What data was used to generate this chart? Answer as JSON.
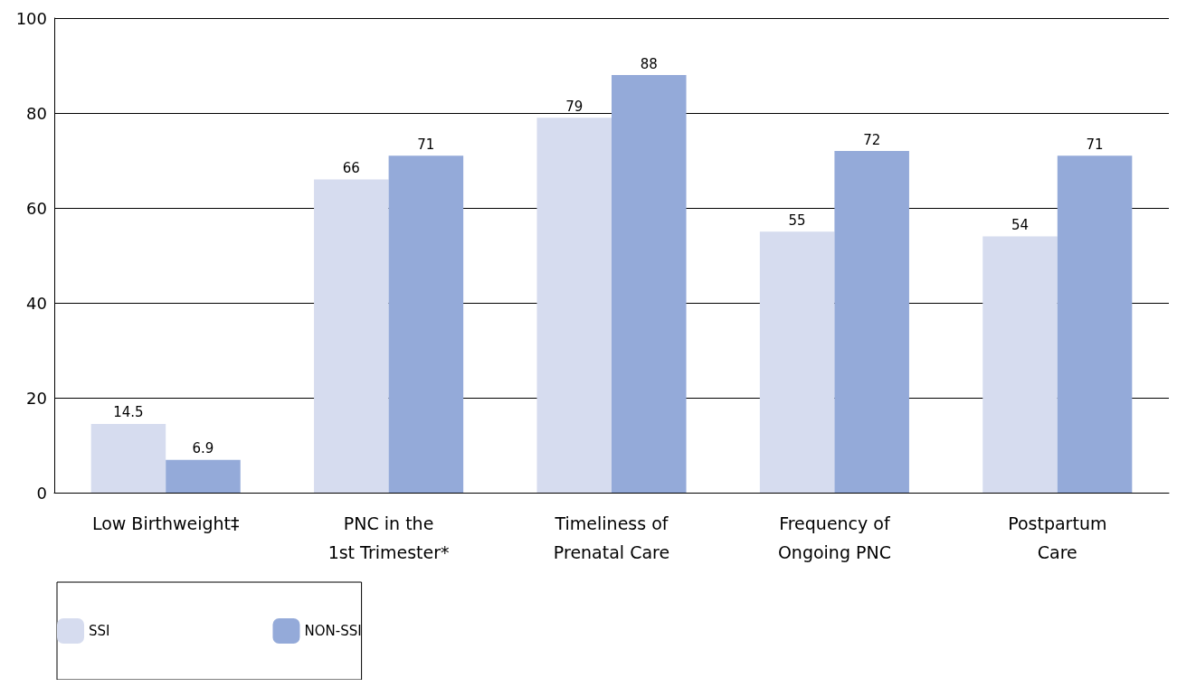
{
  "chart_data": {
    "type": "bar",
    "categories": [
      "Low Birthweight‡",
      "PNC in the\n1st Trimester*",
      "Timeliness of\nPrenatal Care",
      "Frequency of\nOngoing PNC",
      "Postpartum\nCare"
    ],
    "series": [
      {
        "name": "SSI",
        "color": "#d6dcef",
        "values": [
          14.5,
          66,
          79,
          55,
          54
        ]
      },
      {
        "name": "NON-SSI",
        "color": "#94aad9",
        "values": [
          6.9,
          71,
          88,
          72,
          71
        ]
      }
    ],
    "ylim": [
      0,
      100
    ],
    "yticks": [
      0,
      20,
      40,
      60,
      80,
      100
    ],
    "grid": "y",
    "legend": "bottom",
    "data_labels": true
  }
}
